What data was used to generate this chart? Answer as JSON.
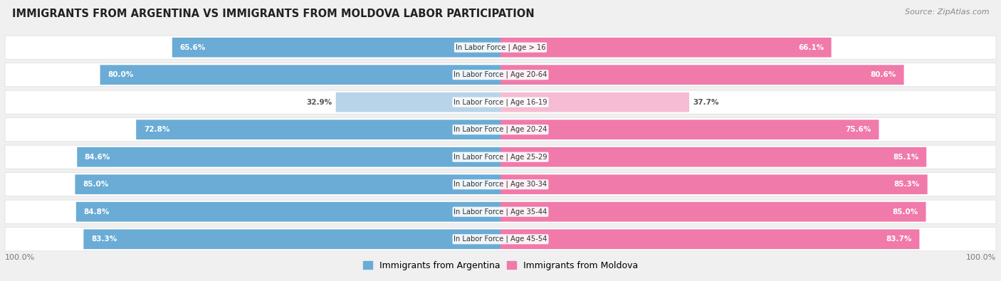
{
  "title": "IMMIGRANTS FROM ARGENTINA VS IMMIGRANTS FROM MOLDOVA LABOR PARTICIPATION",
  "source": "Source: ZipAtlas.com",
  "categories": [
    "In Labor Force | Age > 16",
    "In Labor Force | Age 20-64",
    "In Labor Force | Age 16-19",
    "In Labor Force | Age 20-24",
    "In Labor Force | Age 25-29",
    "In Labor Force | Age 30-34",
    "In Labor Force | Age 35-44",
    "In Labor Force | Age 45-54"
  ],
  "argentina_values": [
    65.6,
    80.0,
    32.9,
    72.8,
    84.6,
    85.0,
    84.8,
    83.3
  ],
  "moldova_values": [
    66.1,
    80.6,
    37.7,
    75.6,
    85.1,
    85.3,
    85.0,
    83.7
  ],
  "argentina_color": "#6aacd5",
  "argentina_color_light": "#b8d4e8",
  "moldova_color": "#f07aaa",
  "moldova_color_light": "#f5bcd4",
  "label_argentina": "Immigrants from Argentina",
  "label_moldova": "Immigrants from Moldova",
  "background_color": "#f0f0f0",
  "row_bg_color": "#ffffff",
  "max_value": 100.0,
  "light_indices": [
    2
  ]
}
